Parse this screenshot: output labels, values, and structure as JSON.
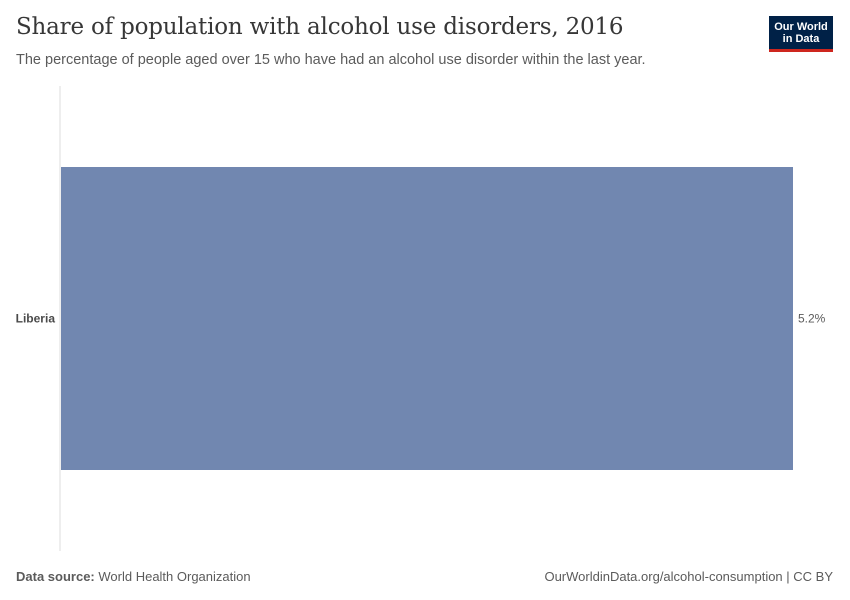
{
  "header": {
    "title": "Share of population with alcohol use disorders, 2016",
    "subtitle": "The percentage of people aged over 15 who have had an alcohol use disorder within the last year."
  },
  "logo": {
    "line1": "Our World",
    "line2": "in Data"
  },
  "footer": {
    "source_label": "Data source:",
    "source_value": "World Health Organization",
    "url_text": "OurWorldinData.org/alcohol-consumption | CC BY"
  },
  "colors": {
    "bar": "#7187b0",
    "axis": "#dddddd",
    "logo_bg": "#002147",
    "logo_accent": "#ce261e"
  },
  "chart_data": {
    "type": "bar",
    "orientation": "horizontal",
    "categories": [
      "Liberia"
    ],
    "values": [
      5.2
    ],
    "value_labels": [
      "5.2%"
    ],
    "unit": "%",
    "xlim": [
      0,
      5.2
    ],
    "title": "Share of population with alcohol use disorders, 2016",
    "xlabel": "",
    "ylabel": "",
    "grid": false
  }
}
